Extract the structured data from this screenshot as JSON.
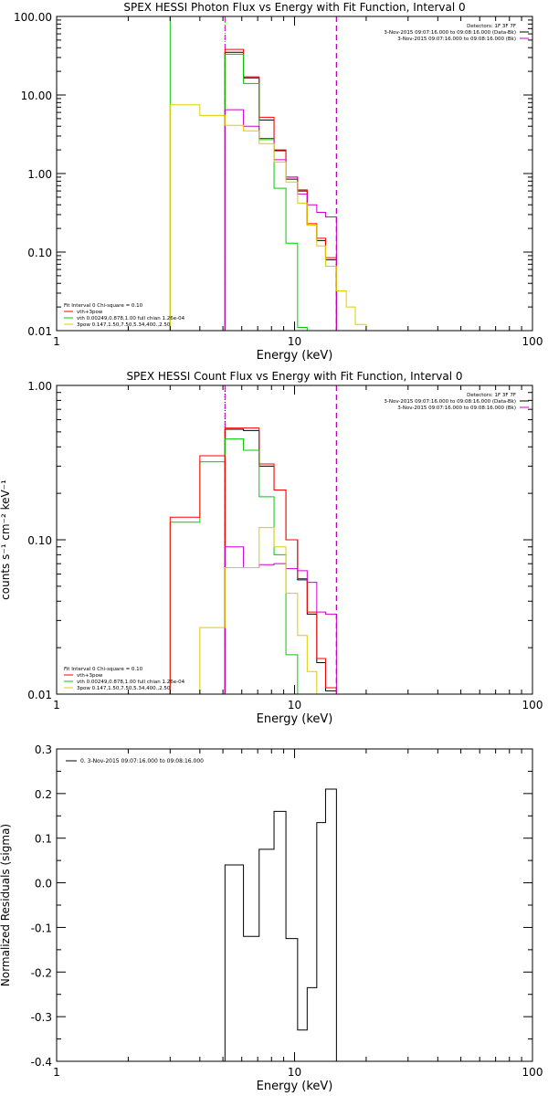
{
  "chart_data": [
    {
      "type": "line",
      "title": "SPEX HESSI Photon Flux vs Energy with Fit Function, Interval 0",
      "xlabel": "Energy (keV)",
      "ylabel": "",
      "xscale": "log",
      "yscale": "log",
      "xlim": [
        1,
        100
      ],
      "ylim": [
        0.01,
        100
      ],
      "xticks": [
        {
          "v": 1,
          "label": "1"
        },
        {
          "v": 10,
          "label": "10"
        },
        {
          "v": 100,
          "label": "100"
        }
      ],
      "yticks": [
        {
          "v": 0.01,
          "label": "0.01"
        },
        {
          "v": 0.1,
          "label": "0.10"
        },
        {
          "v": 1,
          "label": "1.00"
        },
        {
          "v": 10,
          "label": "10.00"
        },
        {
          "v": 100,
          "label": "100.00"
        }
      ],
      "vlines": [
        {
          "x": 3.0,
          "color": "#00cc00",
          "style": "solid"
        },
        {
          "x": 5.1,
          "color": "#00cc00",
          "style": "dotted"
        },
        {
          "x": 5.1,
          "color": "#cc00cc",
          "style": "dashed"
        },
        {
          "x": 15.0,
          "color": "#000000",
          "style": "dashed"
        },
        {
          "x": 15.0,
          "color": "#cc00cc",
          "style": "dashed"
        }
      ],
      "bin_edges": [
        5.1,
        6.1,
        7.1,
        8.2,
        9.2,
        10.3,
        11.3,
        12.4,
        13.5,
        15.0
      ],
      "series": [
        {
          "color": "#000000",
          "y": [
            35,
            16.5,
            4.8,
            1.95,
            0.85,
            0.6,
            0.22,
            0.14,
            0.08
          ]
        },
        {
          "color": "#ff0000",
          "y": [
            38,
            17,
            5.2,
            2.0,
            0.9,
            0.62,
            0.23,
            0.15,
            0.085
          ]
        },
        {
          "color": "#00cc00",
          "y": [
            33,
            14,
            2.7,
            0.65,
            0.13,
            0.011
          ]
        },
        {
          "color": "#cc00cc",
          "y": [
            6.5,
            4.0,
            2.8,
            1.5,
            0.9,
            0.55,
            0.4,
            0.32,
            0.28
          ]
        },
        {
          "color": "#ddcc00",
          "y": [
            7.5,
            5.5,
            4.1,
            3.5,
            2.4,
            1.4,
            0.78,
            0.42,
            0.22,
            0.12,
            0.066,
            0.032,
            0.02,
            0.012
          ],
          "edges": [
            3.0,
            4.0,
            5.1,
            6.1,
            7.1,
            8.2,
            9.2,
            10.3,
            11.3,
            12.4,
            13.5,
            15.0,
            16.5,
            18.0,
            20.0
          ]
        }
      ],
      "right_legend": [
        {
          "text": "Detectors: 1F 3F 7F",
          "color": "#000000"
        },
        {
          "text": "3-Nov-2015 09:07:16.000 to 09:08:16.000 (Data-Bk)",
          "color": "#000000"
        },
        {
          "text": "3-Nov-2015 09:07:16.000 to 09:08:16.000 (Bk)",
          "color": "#cc00cc"
        }
      ],
      "left_legend": [
        {
          "text": "Fit Interval 0   Chi-square = 0.10",
          "color": "#000000"
        },
        {
          "text": "vth+3pow",
          "color": "#ff0000"
        },
        {
          "text": "vth 0.00249,0.878,1.00   full chian 1.26e-04",
          "color": "#00cc00"
        },
        {
          "text": "3pow 0.147,1.50,7.50,5.34,400.,2.50",
          "color": "#ddcc00"
        }
      ]
    },
    {
      "type": "line",
      "title": "SPEX HESSI Count Flux vs Energy with Fit Function, Interval 0",
      "xlabel": "Energy (keV)",
      "ylabel": "counts s⁻¹ cm⁻² keV⁻¹",
      "xscale": "log",
      "yscale": "log",
      "xlim": [
        1,
        100
      ],
      "ylim": [
        0.01,
        1
      ],
      "xticks": [
        {
          "v": 1,
          "label": "1"
        },
        {
          "v": 10,
          "label": "10"
        },
        {
          "v": 100,
          "label": "100"
        }
      ],
      "yticks": [
        {
          "v": 0.01,
          "label": "0.01"
        },
        {
          "v": 0.1,
          "label": "0.10"
        },
        {
          "v": 1,
          "label": "1.00"
        }
      ],
      "vlines": [
        {
          "x": 5.1,
          "color": "#000000",
          "style": "dotted"
        },
        {
          "x": 5.1,
          "color": "#cc00cc",
          "style": "dashed"
        },
        {
          "x": 15.0,
          "color": "#000000",
          "style": "dashed"
        },
        {
          "x": 15.0,
          "color": "#cc00cc",
          "style": "dashed"
        }
      ],
      "bin_edges": [
        5.1,
        6.1,
        7.1,
        8.2,
        9.2,
        10.3,
        11.3,
        12.4,
        13.5,
        15.0
      ],
      "series": [
        {
          "color": "#000000",
          "y": [
            0.52,
            0.51,
            0.3,
            0.21,
            0.1,
            0.055,
            0.033,
            0.016,
            0.0105
          ]
        },
        {
          "color": "#ff0000",
          "y": [
            0.53,
            0.53,
            0.31,
            0.21,
            0.1,
            0.056,
            0.034,
            0.017,
            0.011
          ]
        },
        {
          "color": "#00cc00",
          "y": [
            0.45,
            0.38,
            0.19,
            0.08,
            0.018,
            0.011
          ],
          "edges": [
            3.0,
            4.0,
            5.1,
            6.1,
            7.1,
            8.2,
            9.2,
            10.3
          ],
          "pre": [
            0.13,
            0.32
          ]
        },
        {
          "color": "#ff0000",
          "y": [
            0.14,
            0.35
          ],
          "edges": [
            3.0,
            4.0,
            5.1
          ]
        },
        {
          "color": "#cc00cc",
          "y": [
            0.09,
            0.066,
            0.069,
            0.07,
            0.065,
            0.063,
            0.053,
            0.034,
            0.033
          ]
        },
        {
          "color": "#ddcc00",
          "y": [
            0.027,
            0.066,
            0.066,
            0.12,
            0.09,
            0.045,
            0.024,
            0.014,
            0.01
          ],
          "edges": [
            4.0,
            5.1,
            6.1,
            7.1,
            8.2,
            9.2,
            10.3,
            11.3,
            12.4,
            13.5
          ]
        }
      ],
      "right_legend": [
        {
          "text": "Detectors: 1F 3F 7F",
          "color": "#000000"
        },
        {
          "text": "3-Nov-2015 09:07:16.000 to 09:08:16.000 (Data-Bk)",
          "color": "#000000"
        },
        {
          "text": "3-Nov-2015 09:07:16.000 to 09:08:16.000 (Bk)",
          "color": "#cc00cc"
        }
      ],
      "left_legend": [
        {
          "text": "Fit Interval 0   Chi-square = 0.10",
          "color": "#000000"
        },
        {
          "text": "vth+3pow",
          "color": "#ff0000"
        },
        {
          "text": "vth 0.00249,0.878,1.00   full chian 1.26e-04",
          "color": "#00cc00"
        },
        {
          "text": "3pow 0.147,1.50,7.50,5.34,400.,2.50",
          "color": "#ddcc00"
        }
      ]
    },
    {
      "type": "line",
      "title": "",
      "xlabel": "Energy (keV)",
      "ylabel": "Normalized Residuals (sigma)",
      "xscale": "log",
      "yscale": "linear",
      "xlim": [
        1,
        100
      ],
      "ylim": [
        -0.4,
        0.3
      ],
      "xticks": [
        {
          "v": 1,
          "label": "1"
        },
        {
          "v": 10,
          "label": "10"
        },
        {
          "v": 100,
          "label": "100"
        }
      ],
      "yticks": [
        {
          "v": -0.4,
          "label": "-0.4"
        },
        {
          "v": -0.3,
          "label": "-0.3"
        },
        {
          "v": -0.2,
          "label": "-0.2"
        },
        {
          "v": -0.1,
          "label": "-0.1"
        },
        {
          "v": 0.0,
          "label": "0.0"
        },
        {
          "v": 0.1,
          "label": "0.1"
        },
        {
          "v": 0.2,
          "label": "0.2"
        },
        {
          "v": 0.3,
          "label": "0.3"
        }
      ],
      "bin_edges": [
        5.1,
        6.1,
        7.1,
        8.2,
        9.2,
        10.3,
        11.3,
        12.4,
        13.5,
        15.0
      ],
      "series": [
        {
          "color": "#000000",
          "y": [
            0.04,
            -0.12,
            0.075,
            0.16,
            -0.125,
            -0.33,
            -0.235,
            0.135,
            0.21
          ]
        }
      ],
      "legend": [
        {
          "text": "0. 3-Nov-2015 09:07:16.000 to 09:08:16.000",
          "color": "#000000"
        }
      ]
    }
  ]
}
